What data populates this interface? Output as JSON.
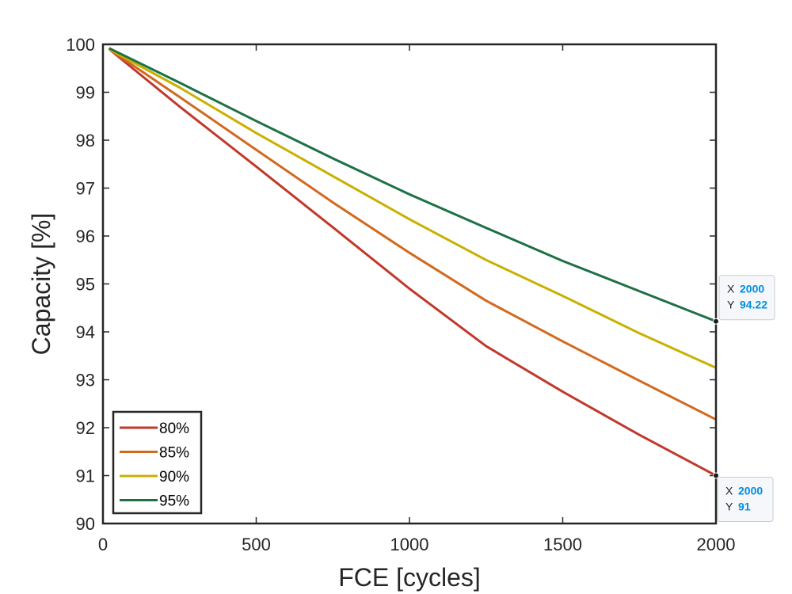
{
  "chart_data": {
    "type": "line",
    "title": "",
    "xlabel": "FCE [cycles]",
    "ylabel": "Capacity [%]",
    "xlim": [
      0,
      2000
    ],
    "ylim": [
      90,
      100
    ],
    "xticks": [
      0,
      500,
      1000,
      1500,
      2000
    ],
    "xtick_labels": [
      "0",
      "500",
      "1000",
      "1500",
      "2000"
    ],
    "yticks": [
      90,
      91,
      92,
      93,
      94,
      95,
      96,
      97,
      98,
      99,
      100
    ],
    "ytick_labels": [
      "90",
      "91",
      "92",
      "93",
      "94",
      "95",
      "96",
      "97",
      "98",
      "99",
      "100"
    ],
    "grid": false,
    "legend_position": "bottom-left",
    "series": [
      {
        "name": "80%",
        "color": "#c0392b",
        "x": [
          20,
          250,
          500,
          750,
          1000,
          1250,
          1500,
          1750,
          2000
        ],
        "y": [
          99.9,
          98.7,
          97.45,
          96.18,
          94.9,
          93.7,
          92.75,
          91.85,
          91.0
        ]
      },
      {
        "name": "85%",
        "color": "#d2691e",
        "x": [
          20,
          250,
          500,
          750,
          1000,
          1250,
          1500,
          1750,
          2000
        ],
        "y": [
          99.9,
          98.9,
          97.8,
          96.7,
          95.65,
          94.65,
          93.8,
          92.98,
          92.17
        ]
      },
      {
        "name": "90%",
        "color": "#c9b000",
        "x": [
          20,
          250,
          500,
          750,
          1000,
          1250,
          1500,
          1750,
          2000
        ],
        "y": [
          99.9,
          99.1,
          98.15,
          97.25,
          96.35,
          95.5,
          94.75,
          93.97,
          93.25
        ]
      },
      {
        "name": "95%",
        "color": "#1e7145",
        "x": [
          20,
          250,
          500,
          750,
          1000,
          1250,
          1500,
          1750,
          2000
        ],
        "y": [
          99.92,
          99.2,
          98.4,
          97.62,
          96.87,
          96.17,
          95.48,
          94.85,
          94.22
        ]
      }
    ],
    "datatips": [
      {
        "x_key": "X",
        "x_value": "2000",
        "y_key": "Y",
        "y_value": "94.22",
        "x": 2000,
        "y": 94.22
      },
      {
        "x_key": "X",
        "x_value": "2000",
        "y_key": "Y",
        "y_value": "91",
        "x": 2000,
        "y": 91.0
      }
    ]
  }
}
